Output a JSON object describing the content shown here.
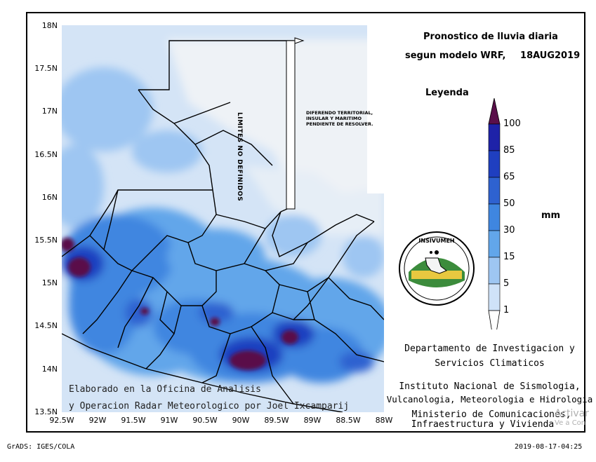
{
  "title": {
    "line1": "Pronostico de lluvia diaria",
    "line2": "segun modelo WRF,",
    "date": "18AUG2019"
  },
  "legend": {
    "heading": "Leyenda",
    "unit": "mm",
    "levels": [
      "100",
      "85",
      "65",
      "50",
      "30",
      "15",
      "5",
      "1"
    ],
    "colors": [
      "#5a0f4a",
      "#1e22a8",
      "#1f3fc0",
      "#2e62d0",
      "#3f86e0",
      "#62a6ea",
      "#9ec6f2",
      "#cfe2f8"
    ]
  },
  "axes": {
    "lat_ticks": [
      "18N",
      "17.5N",
      "17N",
      "16.5N",
      "16N",
      "15.5N",
      "15N",
      "14.5N",
      "14N",
      "13.5N"
    ],
    "lon_ticks": [
      "92.5W",
      "92W",
      "91.5W",
      "91W",
      "90.5W",
      "90W",
      "89.5W",
      "89W",
      "88.5W",
      "88W"
    ]
  },
  "map_annotations": {
    "limits": "LIMITES NO DEFINIDOS",
    "dispute": [
      "DIFERENDO TERRITORIAL,",
      "INSULAR Y MARITIMO",
      "PENDIENTE DE RESOLVER."
    ]
  },
  "credit": {
    "line1": "Elaborado en la Oficina de Analisis",
    "line2": "y Operacion Radar Meteorologico por Joel Ixcamparij"
  },
  "logo": {
    "name": "INSIVUMEH"
  },
  "info": {
    "dept1": "Departamento de Investigacion y",
    "dept2": "Servicios Climaticos",
    "inst1": "Instituto Nacional de Sismologia,",
    "inst2": "Vulcanologia, Meteorologia e Hidrologia",
    "min1": "Ministerio de Comunicaciones,",
    "min2": "Infraestructura y Vivienda"
  },
  "footer": {
    "left": "GrADS: IGES/COLA",
    "right": "2019-08-17-04:25"
  },
  "watermark": {
    "line1": "Activar",
    "line2": "Ve a Con"
  }
}
